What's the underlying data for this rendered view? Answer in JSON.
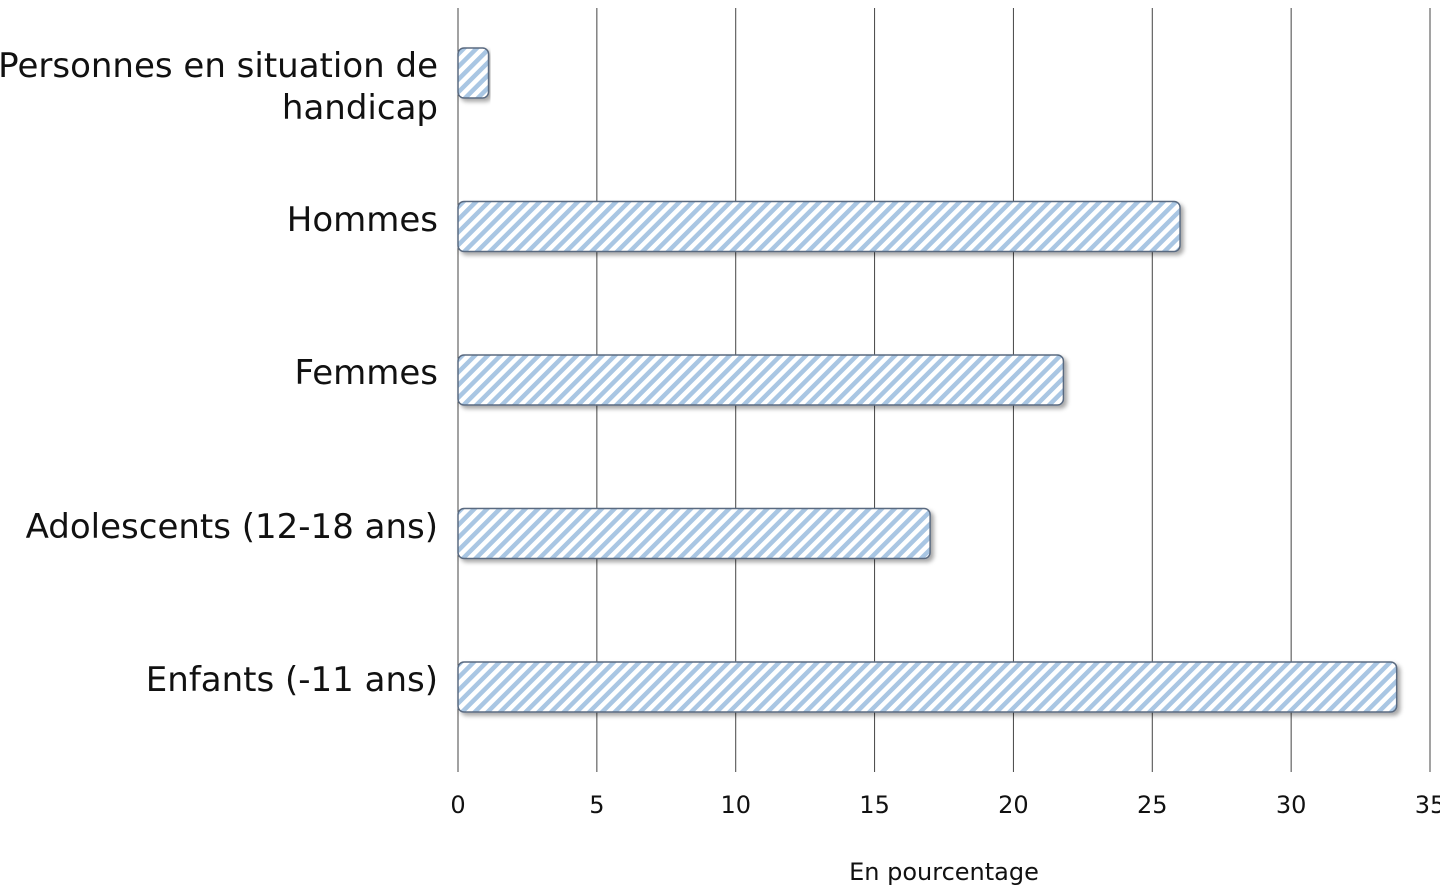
{
  "chart_data": {
    "type": "hbar",
    "categories": [
      "Personnes en situation de handicap",
      "Hommes",
      "Femmes",
      "Adolescents (12-18 ans)",
      "Enfants (-11 ans)"
    ],
    "values": [
      1.1,
      26.0,
      21.8,
      17.0,
      33.8
    ],
    "color": "#a9c6e3",
    "xlim": [
      0,
      35
    ],
    "xticks": [
      0,
      5,
      10,
      15,
      20,
      25,
      30,
      35
    ],
    "xlabel": "En pourcentage",
    "grid": true
  }
}
